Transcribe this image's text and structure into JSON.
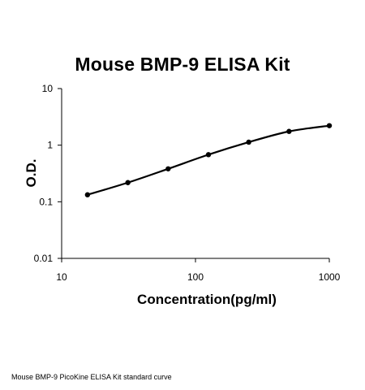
{
  "chart_data": {
    "type": "line",
    "title": "Mouse BMP-9 ELISA Kit",
    "xlabel": "Concentration(pg/ml)",
    "ylabel": "O.D.",
    "xscale": "log",
    "yscale": "log",
    "xlim": [
      10,
      1000
    ],
    "ylim": [
      0.01,
      10
    ],
    "x_ticks": [
      "10",
      "100",
      "1000"
    ],
    "y_ticks": [
      "0.01",
      "0.1",
      "1",
      "10"
    ],
    "grid": false,
    "legend": "none",
    "series": [
      {
        "x": [
          15.6,
          31.25,
          62.5,
          125,
          250,
          500,
          1000
        ],
        "y": [
          0.133,
          0.218,
          0.382,
          0.68,
          1.13,
          1.75,
          2.21
        ],
        "color": "#000000"
      }
    ]
  },
  "caption": "Mouse BMP-9 PicoKine ELISA Kit standard curve"
}
